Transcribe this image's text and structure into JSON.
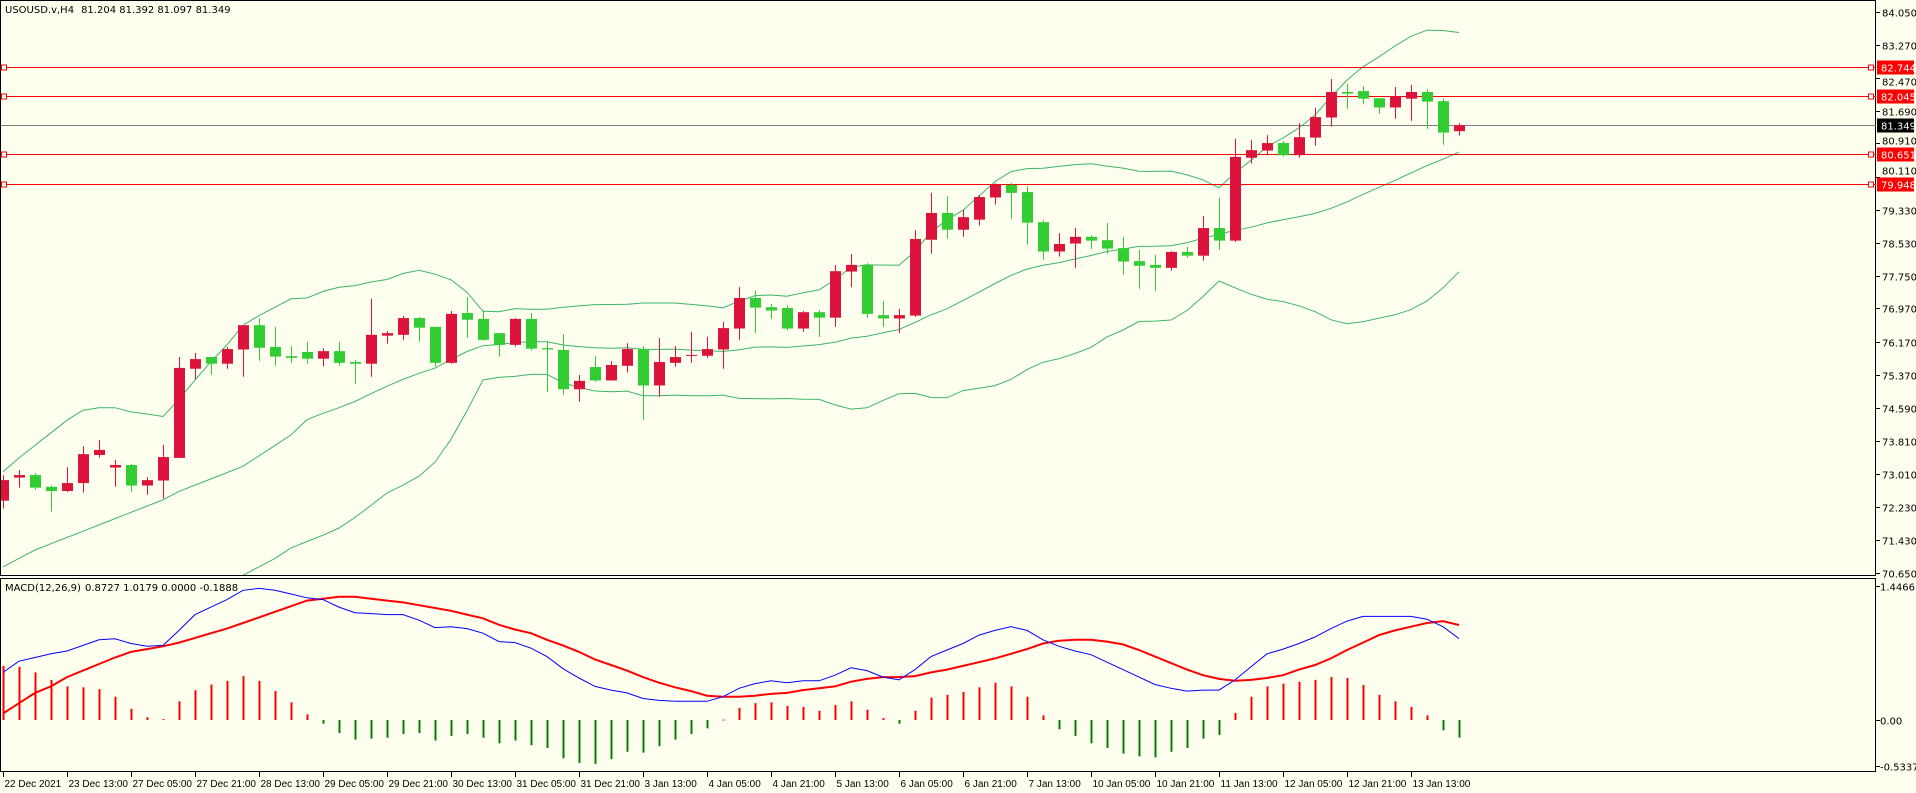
{
  "header": {
    "symbol_timeframe": "USOUSD.v,H4",
    "ohlc": "81.204 81.392 81.097 81.349"
  },
  "macd_header": {
    "label": "MACD(12,26,9)",
    "values": "0.8727 1.0179 0.0000 -0.1888"
  },
  "colors": {
    "background": "#FFFFF0",
    "bull": "#DC143C",
    "bear": "#32CD32",
    "bands": "#3CB371",
    "level": "#FF0000",
    "bid": "#808080",
    "macd": "#0000FF",
    "signal": "#FF0000",
    "hist_pos": "#FF0000",
    "hist_neg": "#008000"
  },
  "price_axis": {
    "ticks": [
      "84.050",
      "83.270",
      "82.470",
      "81.690",
      "80.910",
      "80.110",
      "79.330",
      "78.530",
      "77.750",
      "76.970",
      "76.170",
      "75.370",
      "74.590",
      "73.810",
      "73.010",
      "72.230",
      "71.430",
      "70.650"
    ]
  },
  "macd_axis": {
    "ticks": [
      "1.4466",
      "0.00",
      "-0.5337"
    ]
  },
  "levels": [
    {
      "price": 82.744,
      "label": "82.744"
    },
    {
      "price": 82.045,
      "label": "82.045"
    },
    {
      "price": 80.651,
      "label": "80.651"
    },
    {
      "price": 79.948,
      "label": "79.948"
    }
  ],
  "bid": {
    "price": 81.349,
    "label": "81.349"
  },
  "time_axis": {
    "labels": [
      "22 Dec 2021",
      "23 Dec 13:00",
      "27 Dec 05:00",
      "27 Dec 21:00",
      "28 Dec 13:00",
      "29 Dec 05:00",
      "29 Dec 21:00",
      "30 Dec 13:00",
      "31 Dec 05:00",
      "31 Dec 21:00",
      "3 Jan 13:00",
      "4 Jan 05:00",
      "4 Jan 21:00",
      "5 Jan 13:00",
      "6 Jan 05:00",
      "6 Jan 21:00",
      "7 Jan 13:00",
      "10 Jan 05:00",
      "10 Jan 21:00",
      "11 Jan 13:00",
      "12 Jan 05:00",
      "12 Jan 21:00",
      "13 Jan 13:00"
    ],
    "bars_per_label": 4
  },
  "chart_data": {
    "type": "candlestick",
    "price_range": [
      70.65,
      84.05
    ],
    "candles_ohlc": [
      [
        72.38,
        72.99,
        72.19,
        72.87
      ],
      [
        72.93,
        73.11,
        72.69,
        72.99
      ],
      [
        72.99,
        73.04,
        72.64,
        72.69
      ],
      [
        72.71,
        72.74,
        72.12,
        72.61
      ],
      [
        72.61,
        73.18,
        72.59,
        72.8
      ],
      [
        72.8,
        73.68,
        72.57,
        73.49
      ],
      [
        73.47,
        73.83,
        73.41,
        73.59
      ],
      [
        73.17,
        73.35,
        72.71,
        73.23
      ],
      [
        73.23,
        73.26,
        72.59,
        72.74
      ],
      [
        72.74,
        72.94,
        72.52,
        72.87
      ],
      [
        72.86,
        73.71,
        72.43,
        73.42
      ],
      [
        73.4,
        75.81,
        73.4,
        75.55
      ],
      [
        75.53,
        75.91,
        75.28,
        75.76
      ],
      [
        75.81,
        75.81,
        75.39,
        75.65
      ],
      [
        75.65,
        76.05,
        75.53,
        76.0
      ],
      [
        75.99,
        76.57,
        75.34,
        76.57
      ],
      [
        76.57,
        76.74,
        75.72,
        76.03
      ],
      [
        76.05,
        76.53,
        75.6,
        75.82
      ],
      [
        75.83,
        76.07,
        75.67,
        75.79
      ],
      [
        75.93,
        76.17,
        75.65,
        75.77
      ],
      [
        75.77,
        76.02,
        75.58,
        75.95
      ],
      [
        75.95,
        76.17,
        75.6,
        75.67
      ],
      [
        75.69,
        75.74,
        75.17,
        75.65
      ],
      [
        75.65,
        77.2,
        75.34,
        76.34
      ],
      [
        76.32,
        76.43,
        76.13,
        76.38
      ],
      [
        76.34,
        76.79,
        76.22,
        76.74
      ],
      [
        76.74,
        76.77,
        76.18,
        76.51
      ],
      [
        76.53,
        76.53,
        75.58,
        75.67
      ],
      [
        75.67,
        76.91,
        75.65,
        76.84
      ],
      [
        76.86,
        77.24,
        76.27,
        76.7
      ],
      [
        76.72,
        76.93,
        76.2,
        76.22
      ],
      [
        76.38,
        76.38,
        75.82,
        76.1
      ],
      [
        76.1,
        76.74,
        76.06,
        76.72
      ],
      [
        76.72,
        76.86,
        75.96,
        76.01
      ],
      [
        76.02,
        76.19,
        74.98,
        75.99
      ],
      [
        75.98,
        76.36,
        74.91,
        75.04
      ],
      [
        75.04,
        75.38,
        74.74,
        75.24
      ],
      [
        75.57,
        75.83,
        75.22,
        75.25
      ],
      [
        75.25,
        75.71,
        75.25,
        75.62
      ],
      [
        75.6,
        76.14,
        75.44,
        76.0
      ],
      [
        76.0,
        76.07,
        74.31,
        75.13
      ],
      [
        75.13,
        76.26,
        74.86,
        75.69
      ],
      [
        75.67,
        76.07,
        75.58,
        75.81
      ],
      [
        75.84,
        76.41,
        75.67,
        75.86
      ],
      [
        75.84,
        76.29,
        75.79,
        76.0
      ],
      [
        75.99,
        76.65,
        75.53,
        76.5
      ],
      [
        76.49,
        77.48,
        76.22,
        77.22
      ],
      [
        77.22,
        77.39,
        76.38,
        76.99
      ],
      [
        77.0,
        77.08,
        76.72,
        76.92
      ],
      [
        76.98,
        77.05,
        76.44,
        76.49
      ],
      [
        76.49,
        76.91,
        76.41,
        76.88
      ],
      [
        76.88,
        76.93,
        76.29,
        76.75
      ],
      [
        76.75,
        78.01,
        76.53,
        77.86
      ],
      [
        77.85,
        78.27,
        77.48,
        78.01
      ],
      [
        78.01,
        78.05,
        76.75,
        76.84
      ],
      [
        76.81,
        77.15,
        76.53,
        76.73
      ],
      [
        76.73,
        76.96,
        76.38,
        76.81
      ],
      [
        76.8,
        78.84,
        76.77,
        78.63
      ],
      [
        78.61,
        79.73,
        78.28,
        79.25
      ],
      [
        79.25,
        79.65,
        78.64,
        78.85
      ],
      [
        78.85,
        79.32,
        78.68,
        79.15
      ],
      [
        79.09,
        79.68,
        78.95,
        79.63
      ],
      [
        79.62,
        79.96,
        79.45,
        79.93
      ],
      [
        79.92,
        79.97,
        79.11,
        79.73
      ],
      [
        79.75,
        79.89,
        78.49,
        79.02
      ],
      [
        79.03,
        79.08,
        78.13,
        78.33
      ],
      [
        78.33,
        78.77,
        78.21,
        78.51
      ],
      [
        78.52,
        78.89,
        77.94,
        78.68
      ],
      [
        78.68,
        78.72,
        78.39,
        78.59
      ],
      [
        78.6,
        79.01,
        78.28,
        78.4
      ],
      [
        78.41,
        78.68,
        77.78,
        78.09
      ],
      [
        78.1,
        78.37,
        77.44,
        77.99
      ],
      [
        78.01,
        78.25,
        77.39,
        77.94
      ],
      [
        77.94,
        78.34,
        77.87,
        78.32
      ],
      [
        78.32,
        78.44,
        78.18,
        78.23
      ],
      [
        78.23,
        79.18,
        78.11,
        78.89
      ],
      [
        78.89,
        79.61,
        78.37,
        78.59
      ],
      [
        78.59,
        81.02,
        78.56,
        80.59
      ],
      [
        80.57,
        80.99,
        80.43,
        80.75
      ],
      [
        80.74,
        81.11,
        80.63,
        80.92
      ],
      [
        80.92,
        80.97,
        80.6,
        80.63
      ],
      [
        80.63,
        81.4,
        80.57,
        81.06
      ],
      [
        81.05,
        81.76,
        80.86,
        81.54
      ],
      [
        81.53,
        82.45,
        81.31,
        82.14
      ],
      [
        82.14,
        82.33,
        81.74,
        82.1
      ],
      [
        82.16,
        82.28,
        81.86,
        81.98
      ],
      [
        81.99,
        81.99,
        81.62,
        81.77
      ],
      [
        81.77,
        82.26,
        81.5,
        82.04
      ],
      [
        81.98,
        82.31,
        81.45,
        82.14
      ],
      [
        82.14,
        82.21,
        81.26,
        81.91
      ],
      [
        81.92,
        81.99,
        80.88,
        81.17
      ],
      [
        81.204,
        81.392,
        81.097,
        81.349
      ]
    ],
    "bollinger": {
      "period": 20,
      "deviations": 2,
      "warmup_upper": [
        73.07,
        73.4,
        73.7,
        74.0,
        74.3,
        74.54,
        74.6,
        74.6,
        74.5,
        74.45,
        74.39,
        74.8,
        75.26,
        75.7,
        76.1,
        76.57,
        76.8,
        77.0,
        77.2
      ],
      "warmup_middle": [
        70.8,
        71.0,
        71.2,
        71.35,
        71.5,
        71.65,
        71.8,
        71.95,
        72.1,
        72.25,
        72.4,
        72.6,
        72.75,
        72.9,
        73.05,
        73.2,
        73.45,
        73.7,
        73.95
      ],
      "warmup_lower": [
        68.5,
        68.6,
        68.7,
        68.8,
        68.9,
        69.0,
        69.2,
        69.4,
        69.6,
        69.8,
        70.0,
        70.1,
        70.2,
        70.35,
        70.5,
        70.6,
        70.8,
        71.0,
        71.25
      ]
    },
    "macd": {
      "range": [
        -0.5337,
        1.4466
      ],
      "main": [
        0.51,
        0.63,
        0.67,
        0.71,
        0.74,
        0.8,
        0.86,
        0.87,
        0.82,
        0.79,
        0.8,
        0.96,
        1.13,
        1.21,
        1.29,
        1.39,
        1.41,
        1.39,
        1.35,
        1.31,
        1.29,
        1.21,
        1.15,
        1.14,
        1.13,
        1.13,
        1.07,
        0.99,
        1.0,
        0.98,
        0.93,
        0.84,
        0.83,
        0.77,
        0.68,
        0.55,
        0.45,
        0.36,
        0.32,
        0.29,
        0.23,
        0.21,
        0.2,
        0.2,
        0.2,
        0.25,
        0.34,
        0.39,
        0.42,
        0.4,
        0.42,
        0.42,
        0.48,
        0.56,
        0.53,
        0.46,
        0.43,
        0.54,
        0.68,
        0.75,
        0.82,
        0.91,
        0.96,
        1.0,
        0.96,
        0.86,
        0.79,
        0.74,
        0.7,
        0.62,
        0.54,
        0.46,
        0.38,
        0.34,
        0.31,
        0.32,
        0.32,
        0.43,
        0.57,
        0.71,
        0.76,
        0.82,
        0.89,
        0.98,
        1.06,
        1.11,
        1.11,
        1.11,
        1.11,
        1.08,
        1.0,
        0.8727
      ],
      "signal": [
        0.07,
        0.18,
        0.29,
        0.36,
        0.46,
        0.53,
        0.6,
        0.67,
        0.73,
        0.76,
        0.79,
        0.83,
        0.88,
        0.93,
        0.98,
        1.04,
        1.1,
        1.16,
        1.22,
        1.28,
        1.3,
        1.32,
        1.32,
        1.3,
        1.28,
        1.26,
        1.23,
        1.2,
        1.17,
        1.13,
        1.09,
        1.02,
        0.97,
        0.93,
        0.86,
        0.8,
        0.73,
        0.65,
        0.59,
        0.53,
        0.46,
        0.4,
        0.35,
        0.31,
        0.26,
        0.25,
        0.25,
        0.26,
        0.28,
        0.29,
        0.32,
        0.34,
        0.36,
        0.41,
        0.44,
        0.46,
        0.46,
        0.47,
        0.51,
        0.54,
        0.58,
        0.62,
        0.66,
        0.71,
        0.76,
        0.82,
        0.85,
        0.86,
        0.86,
        0.84,
        0.81,
        0.75,
        0.68,
        0.61,
        0.54,
        0.48,
        0.44,
        0.42,
        0.43,
        0.45,
        0.48,
        0.54,
        0.59,
        0.66,
        0.75,
        0.83,
        0.91,
        0.96,
        1.0,
        1.04,
        1.06,
        1.0179
      ],
      "histogram": [
        0.58,
        0.57,
        0.51,
        0.43,
        0.36,
        0.35,
        0.33,
        0.25,
        0.12,
        0.03,
        0.01,
        0.2,
        0.32,
        0.38,
        0.42,
        0.47,
        0.42,
        0.31,
        0.19,
        0.06,
        -0.04,
        -0.14,
        -0.21,
        -0.2,
        -0.19,
        -0.15,
        -0.14,
        -0.22,
        -0.17,
        -0.15,
        -0.19,
        -0.25,
        -0.22,
        -0.27,
        -0.3,
        -0.41,
        -0.46,
        -0.47,
        -0.42,
        -0.34,
        -0.35,
        -0.28,
        -0.21,
        -0.15,
        -0.09,
        0.005,
        0.13,
        0.18,
        0.19,
        0.15,
        0.14,
        0.1,
        0.16,
        0.2,
        0.11,
        0.02,
        -0.04,
        0.1,
        0.24,
        0.27,
        0.3,
        0.35,
        0.4,
        0.36,
        0.25,
        0.05,
        -0.1,
        -0.17,
        -0.25,
        -0.3,
        -0.36,
        -0.39,
        -0.4,
        -0.34,
        -0.3,
        -0.2,
        -0.16,
        0.075,
        0.25,
        0.36,
        0.39,
        0.41,
        0.43,
        0.46,
        0.45,
        0.375,
        0.27,
        0.2,
        0.14,
        0.05,
        -0.11,
        -0.1888
      ]
    }
  }
}
